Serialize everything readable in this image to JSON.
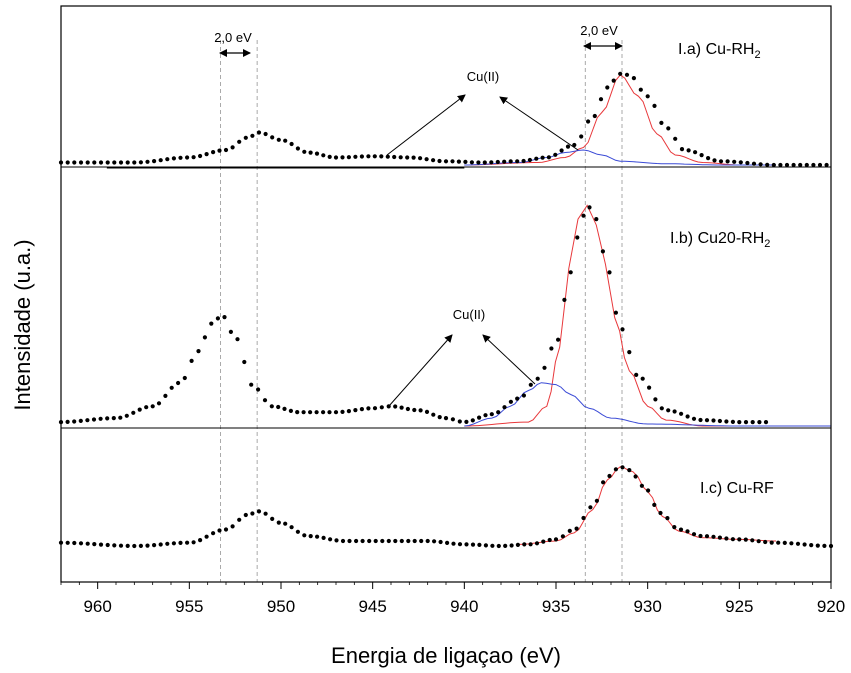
{
  "chart_data": {
    "type": "line",
    "xlabel": "Energia de ligaçao (eV)",
    "ylabel": "Intensidade (u.a.)",
    "xlim": [
      962,
      920
    ],
    "x_reversed": true,
    "x_ticks": [
      960,
      955,
      950,
      945,
      940,
      935,
      930,
      925,
      920
    ],
    "reference_lines_ev": [
      953.3,
      951.3,
      933.4,
      931.4
    ],
    "colors": {
      "data": "#000000",
      "fit_main": "#e8383b",
      "fit_cu2": "#3b4bd6",
      "guide": "#aaaaaa"
    },
    "panels": [
      {
        "label": "I.a) Cu-RH",
        "label_sub": "2",
        "series": [
          {
            "style": "dotted",
            "x": [
              962.0,
              958.0,
              955.0,
              953.0,
              951.8,
              951.2,
              950.0,
              948.5,
              947.0,
              945.0,
              943.0,
              941.0,
              939.0,
              937.0,
              935.5,
              934.0,
              933.0,
              932.2,
              931.5,
              931.0,
              930.0,
              929.0,
              928.0,
              926.0,
              923.0,
              920.0
            ],
            "y": [
              0.02,
              0.02,
              0.06,
              0.12,
              0.22,
              0.26,
              0.2,
              0.1,
              0.06,
              0.07,
              0.06,
              0.03,
              0.02,
              0.03,
              0.06,
              0.16,
              0.38,
              0.62,
              0.73,
              0.72,
              0.55,
              0.3,
              0.12,
              0.03,
              0.0,
              0.0
            ]
          },
          {
            "style": "fit",
            "color": "#e8383b",
            "x": [
              940.0,
              936.0,
              934.5,
              933.5,
              932.5,
              931.5,
              930.5,
              929.5,
              928.5,
              927.0,
              925.0,
              923.0
            ],
            "y": [
              0.0,
              0.02,
              0.06,
              0.14,
              0.42,
              0.72,
              0.55,
              0.25,
              0.08,
              0.02,
              0.0,
              0.0
            ]
          },
          {
            "style": "fit",
            "color": "#3b4bd6",
            "x": [
              940.0,
              937.0,
              935.5,
              934.5,
              933.5,
              932.5,
              931.5,
              929.0,
              926.0,
              923.0
            ],
            "y": [
              0.0,
              0.02,
              0.06,
              0.1,
              0.12,
              0.08,
              0.03,
              0.01,
              0.0,
              0.0
            ]
          }
        ],
        "annotations": [
          {
            "text": "2,0 eV"
          },
          {
            "text": "2,0 eV"
          },
          {
            "text": "Cu(II)"
          }
        ]
      },
      {
        "label": "I.b) Cu20-RH",
        "label_sub": "2",
        "series": [
          {
            "style": "dotted",
            "x": [
              962.0,
              959.0,
              957.0,
              955.5,
              954.5,
              953.8,
              953.2,
              952.5,
              951.5,
              950.5,
              949.0,
              947.0,
              945.0,
              944.0,
              942.5,
              941.0,
              940.0,
              938.5,
              937.0,
              936.0,
              935.0,
              934.2,
              933.6,
              933.3,
              932.8,
              932.2,
              931.5,
              930.5,
              929.0,
              927.0,
              925.0,
              923.3
            ],
            "y": [
              0.02,
              0.04,
              0.1,
              0.22,
              0.38,
              0.52,
              0.56,
              0.45,
              0.2,
              0.1,
              0.07,
              0.07,
              0.09,
              0.1,
              0.08,
              0.04,
              0.02,
              0.06,
              0.14,
              0.24,
              0.42,
              0.78,
              1.05,
              1.12,
              1.05,
              0.8,
              0.5,
              0.25,
              0.08,
              0.03,
              0.02,
              0.02
            ]
          },
          {
            "style": "fit",
            "color": "#e8383b",
            "x": [
              940.0,
              936.5,
              935.5,
              934.8,
              934.3,
              933.8,
              933.3,
              932.8,
              932.3,
              931.8,
              931.0,
              930.0,
              929.0,
              927.0,
              925.0,
              920.0
            ],
            "y": [
              0.0,
              0.02,
              0.1,
              0.4,
              0.8,
              1.05,
              1.12,
              1.02,
              0.82,
              0.55,
              0.28,
              0.1,
              0.03,
              0.0,
              0.0,
              0.0
            ]
          },
          {
            "style": "fit",
            "color": "#3b4bd6",
            "x": [
              940.0,
              938.5,
              937.5,
              936.5,
              935.8,
              935.0,
              934.2,
              933.2,
              932.0,
              930.0,
              925.0,
              920.0
            ],
            "y": [
              0.0,
              0.04,
              0.1,
              0.18,
              0.22,
              0.21,
              0.16,
              0.09,
              0.04,
              0.01,
              0.0,
              0.0
            ]
          }
        ],
        "annotations": [
          {
            "text": "Cu(II)"
          }
        ]
      },
      {
        "label": "I.c) Cu-RF",
        "label_sub": "",
        "series": [
          {
            "style": "dotted",
            "x": [
              962.0,
              958.0,
              955.0,
              953.0,
              951.8,
              951.2,
              950.0,
              948.5,
              946.5,
              944.0,
              942.0,
              940.0,
              938.0,
              936.5,
              935.0,
              934.0,
              933.0,
              932.2,
              931.5,
              931.0,
              930.2,
              929.3,
              928.3,
              927.0,
              925.0,
              923.0,
              920.0
            ],
            "y": [
              0.02,
              0.0,
              0.02,
              0.1,
              0.19,
              0.21,
              0.14,
              0.06,
              0.03,
              0.03,
              0.03,
              0.01,
              0.0,
              0.01,
              0.04,
              0.1,
              0.24,
              0.42,
              0.48,
              0.46,
              0.36,
              0.2,
              0.1,
              0.06,
              0.04,
              0.02,
              0.0
            ]
          },
          {
            "style": "fit",
            "color": "#e8383b",
            "x": [
              937.0,
              935.0,
              934.0,
              933.0,
              932.2,
              931.5,
              930.8,
              930.0,
              929.2,
              928.3,
              927.0,
              925.0,
              923.0
            ],
            "y": [
              0.01,
              0.03,
              0.08,
              0.22,
              0.4,
              0.48,
              0.45,
              0.33,
              0.18,
              0.09,
              0.05,
              0.04,
              0.03
            ]
          }
        ],
        "annotations": []
      }
    ]
  }
}
